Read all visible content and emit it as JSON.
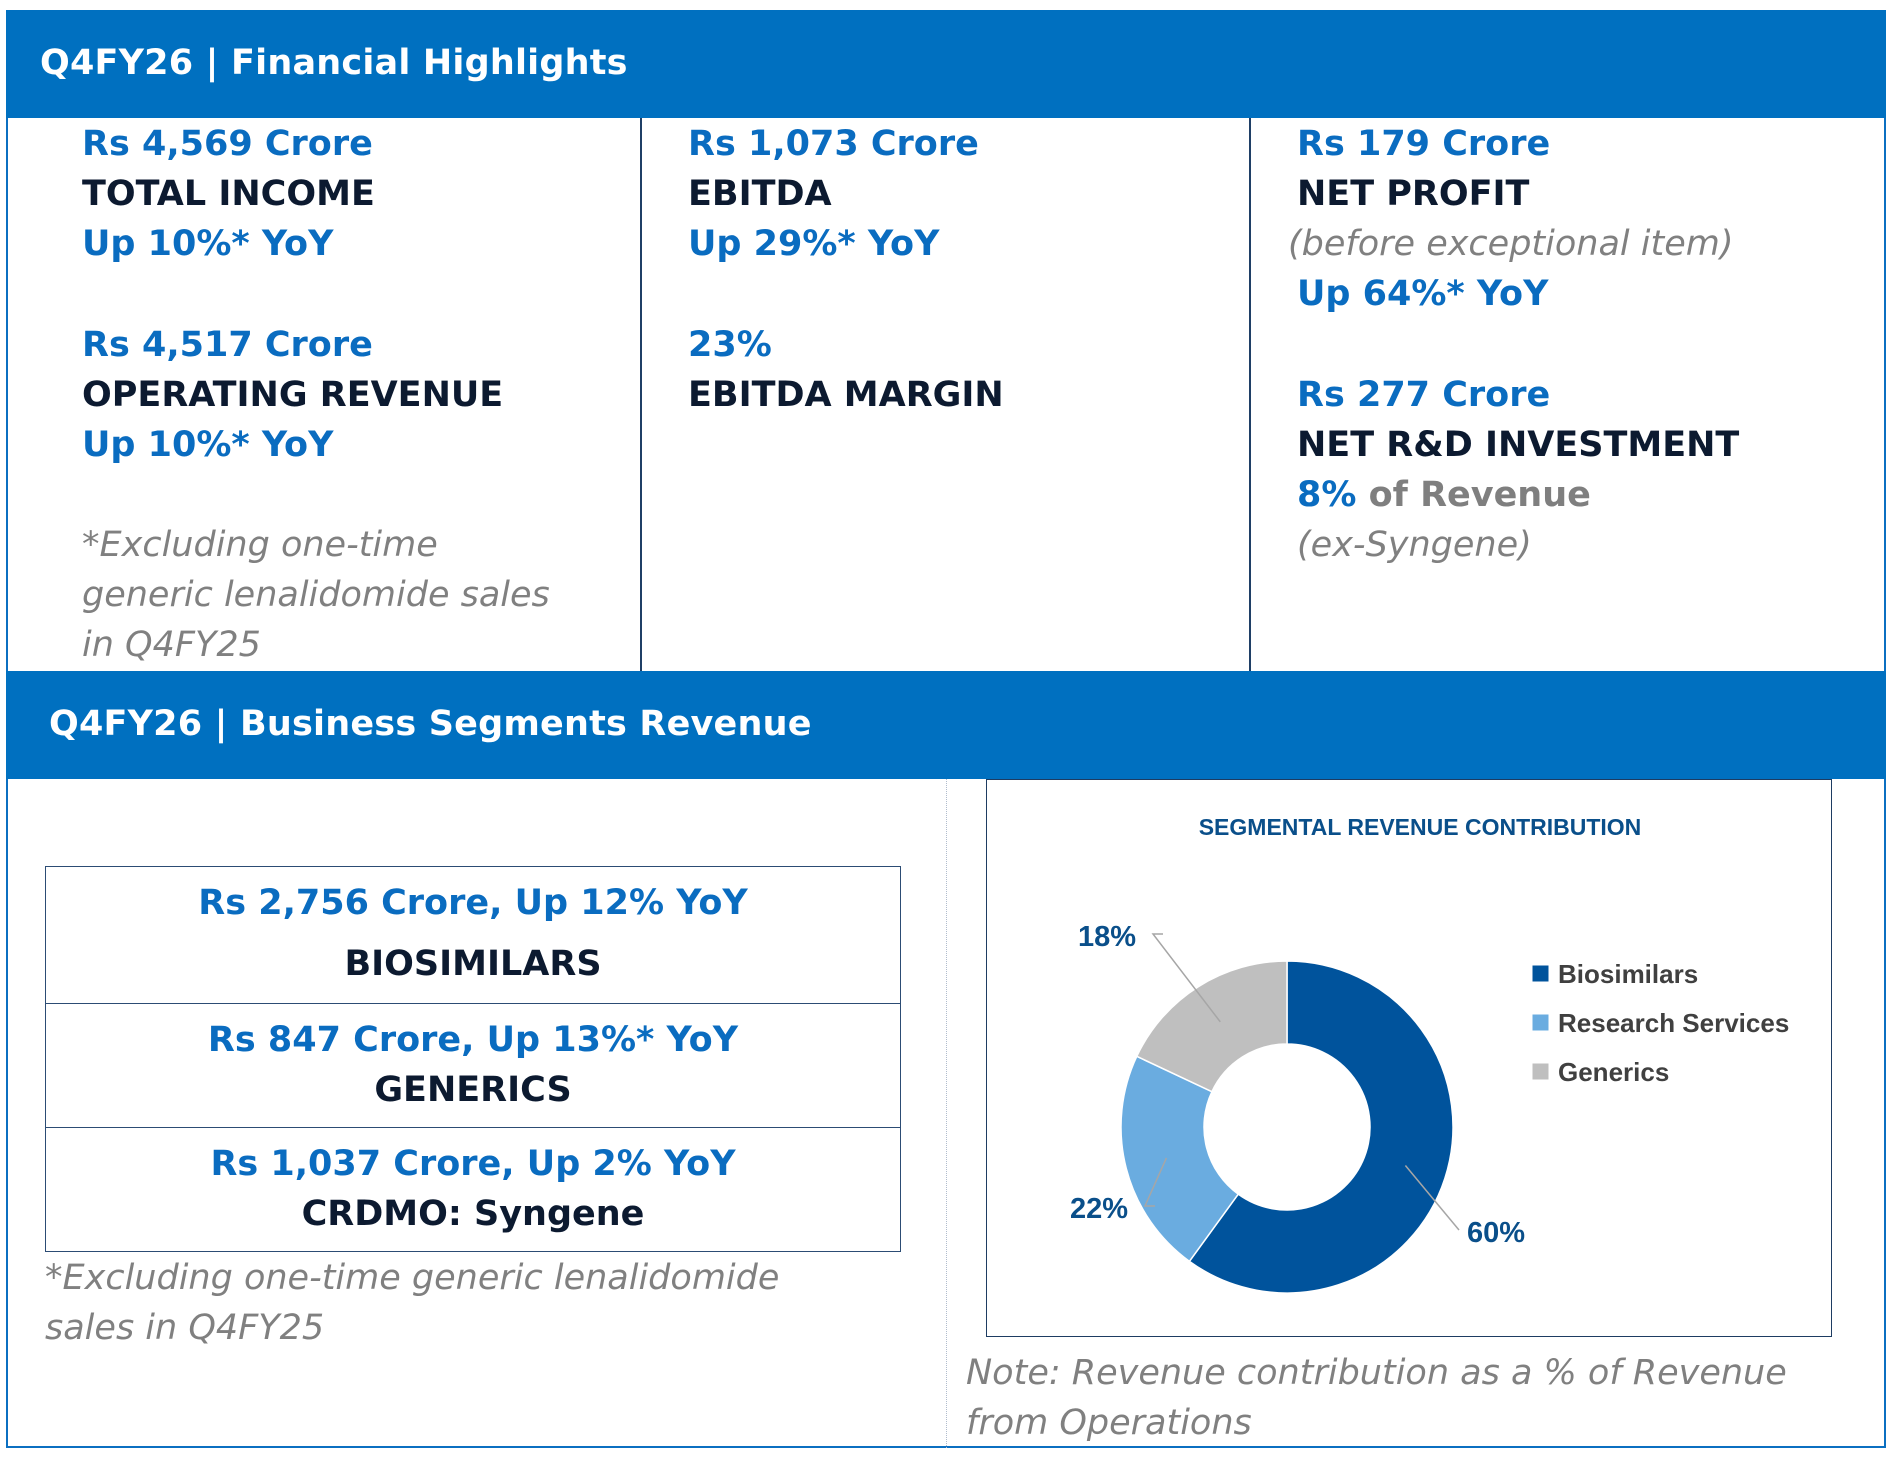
{
  "highlights": {
    "title": "Q4FY26 | Financial Highlights",
    "col1": {
      "total_income_value": "Rs 4,569 Crore",
      "total_income_label": "TOTAL INCOME",
      "total_income_growth": "Up 10%* YoY",
      "op_revenue_value": "Rs 4,517 Crore",
      "op_revenue_label": "OPERATING REVENUE",
      "op_revenue_growth": "Up 10%* YoY",
      "note_line1": "*Excluding one-time",
      "note_line2": "generic lenalidomide sales",
      "note_line3": "in Q4FY25"
    },
    "col2": {
      "ebitda_value": "Rs 1,073 Crore",
      "ebitda_label": "EBITDA",
      "ebitda_growth": "Up 29%* YoY",
      "margin_value": "23%",
      "margin_label": "EBITDA MARGIN"
    },
    "col3": {
      "net_profit_value": "Rs 179 Crore",
      "net_profit_label": "NET PROFIT",
      "net_profit_note": "(before exceptional item)",
      "net_profit_growth": "Up 64%* YoY",
      "rd_value": "Rs 277 Crore",
      "rd_label": "NET R&D INVESTMENT",
      "rd_pct": "8%",
      "rd_pct_suffix": " of Revenue",
      "rd_note": "(ex-Syngene)"
    }
  },
  "segments": {
    "title": "Q4FY26 | Business Segments Revenue",
    "rows": [
      {
        "value": "Rs 2,756 Crore, Up 12% YoY",
        "label": "BIOSIMILARS"
      },
      {
        "value": "Rs 847 Crore, Up 13%* YoY",
        "label": "GENERICS"
      },
      {
        "value": "Rs 1,037 Crore, Up 2% YoY",
        "label": "CRDMO: Syngene"
      }
    ],
    "note_line1": "*Excluding one-time generic lenalidomide",
    "note_line2": "sales in Q4FY25",
    "chart_note_line1": "Note: Revenue contribution as a % of Revenue",
    "chart_note_line2": "from Operations"
  },
  "chart_data": {
    "type": "pie",
    "title": "SEGMENTAL REVENUE CONTRIBUTION",
    "categories": [
      "Biosimilars",
      "Research Services",
      "Generics"
    ],
    "values": [
      60,
      22,
      18
    ],
    "data_labels": [
      "60%",
      "22%",
      "18%"
    ],
    "colors": [
      "#00539c",
      "#6aace0",
      "#bfbfbf"
    ],
    "donut": true,
    "legend_position": "right"
  }
}
